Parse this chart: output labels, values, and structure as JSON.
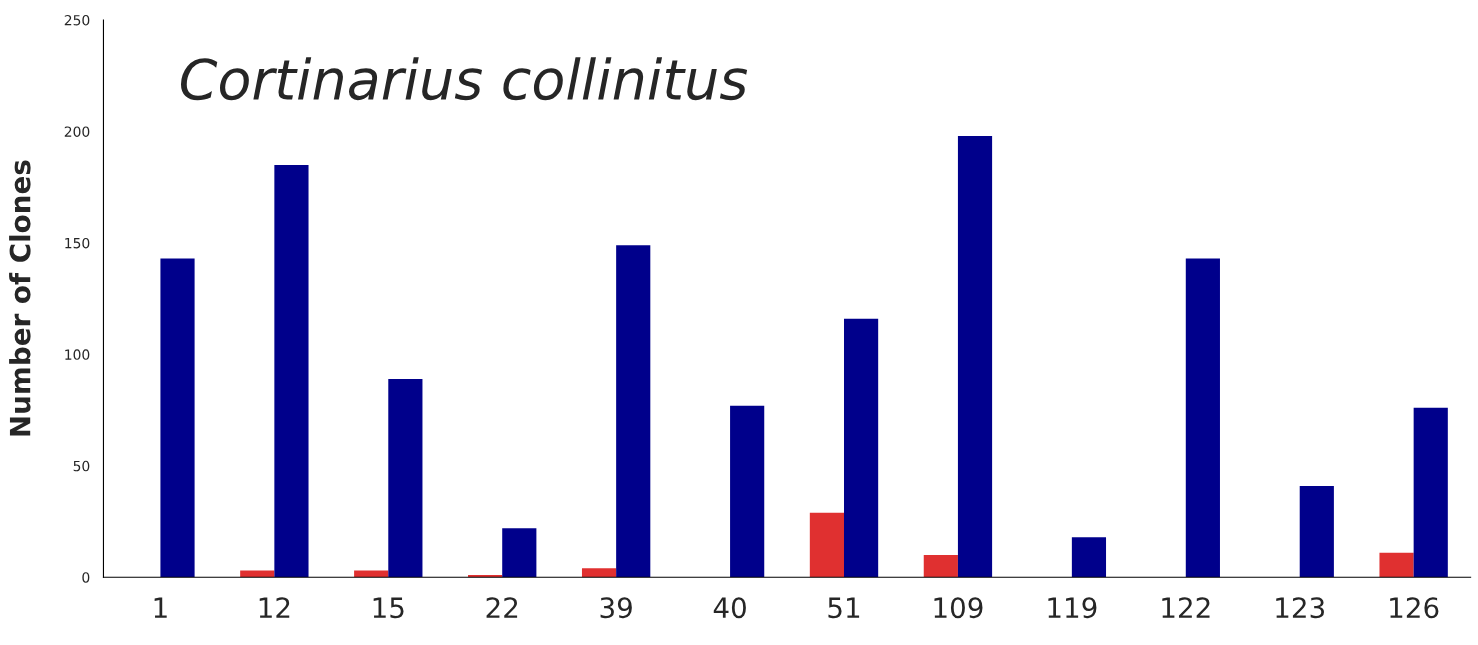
{
  "chart_data": {
    "type": "bar",
    "title": "Cortinarius collinitus",
    "ylabel": "Number of Clones",
    "categories": [
      "1",
      "12",
      "15",
      "22",
      "39",
      "40",
      "51",
      "109",
      "119",
      "122",
      "123",
      "126"
    ],
    "series": [
      {
        "color": "#e03030",
        "values": [
          0,
          3,
          3,
          1,
          4,
          0,
          29,
          10,
          0,
          0,
          0,
          11
        ]
      },
      {
        "color": "#00008b",
        "values": [
          143,
          185,
          89,
          22,
          149,
          77,
          116,
          198,
          18,
          143,
          41,
          76
        ]
      }
    ],
    "ylim": [
      0,
      250
    ],
    "yticks": [
      0,
      50,
      100,
      150,
      200,
      250
    ],
    "grid": false
  }
}
